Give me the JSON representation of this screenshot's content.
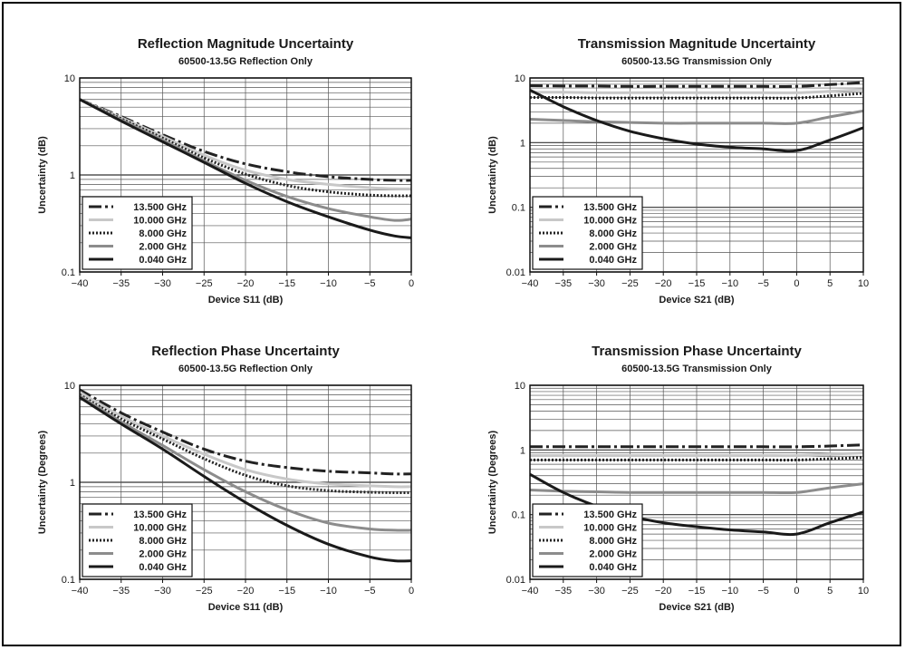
{
  "series_styles": [
    {
      "name": "13.500 GHz",
      "color": "#222222",
      "dash": "14,4,3,4",
      "width": 3
    },
    {
      "name": "10.000 GHz",
      "color": "#c8c8c8",
      "dash": "",
      "width": 3
    },
    {
      "name": "8.000 GHz",
      "color": "#222222",
      "dash": "2,2",
      "width": 3
    },
    {
      "name": "2.000 GHz",
      "color": "#8c8c8c",
      "dash": "",
      "width": 3
    },
    {
      "name": "0.040 GHz",
      "color": "#1a1a1a",
      "dash": "",
      "width": 3
    }
  ],
  "chart_data": [
    {
      "type": "line",
      "title": "Reflection Magnitude Uncertainty",
      "subtitle": "60500-13.5G Reflection Only",
      "xlabel": "Device S11 (dB)",
      "ylabel": "Uncertainty (dB)",
      "xlim": [
        -40,
        0
      ],
      "ylim": [
        0.1,
        10
      ],
      "yscale": "log",
      "xticks": [
        -40,
        -35,
        -30,
        -25,
        -20,
        -15,
        -10,
        -5,
        0
      ],
      "yticks": [
        0.1,
        1,
        10
      ],
      "ytick_labels": [
        "0.1",
        "1",
        "10"
      ],
      "grid": true,
      "legend": "bottom-left",
      "x": [
        -40,
        -35,
        -30,
        -25,
        -20,
        -15,
        -10,
        -5,
        -2,
        0
      ],
      "series": [
        {
          "name": "13.500 GHz",
          "values": [
            6.0,
            4.0,
            2.6,
            1.75,
            1.3,
            1.08,
            0.96,
            0.9,
            0.88,
            0.88
          ]
        },
        {
          "name": "10.000 GHz",
          "values": [
            6.0,
            3.9,
            2.5,
            1.6,
            1.12,
            0.9,
            0.8,
            0.74,
            0.72,
            0.72
          ]
        },
        {
          "name": "8.000 GHz",
          "values": [
            6.0,
            3.8,
            2.4,
            1.5,
            1.02,
            0.78,
            0.67,
            0.62,
            0.61,
            0.61
          ]
        },
        {
          "name": "2.000 GHz",
          "values": [
            6.0,
            3.7,
            2.3,
            1.4,
            0.88,
            0.6,
            0.45,
            0.37,
            0.34,
            0.35
          ]
        },
        {
          "name": "0.040 GHz",
          "values": [
            6.0,
            3.6,
            2.2,
            1.35,
            0.82,
            0.53,
            0.37,
            0.27,
            0.235,
            0.225
          ]
        }
      ]
    },
    {
      "type": "line",
      "title": "Transmission Magnitude Uncertainty",
      "subtitle": "60500-13.5G Transmission Only",
      "xlabel": "Device S21 (dB)",
      "ylabel": "Uncertainty (dB)",
      "xlim": [
        -40,
        10
      ],
      "ylim": [
        0.01,
        10
      ],
      "yscale": "log",
      "xticks": [
        -40,
        -35,
        -30,
        -25,
        -20,
        -15,
        -10,
        -5,
        0,
        5,
        10
      ],
      "yticks": [
        0.01,
        0.1,
        1,
        10
      ],
      "ytick_labels": [
        "0.01",
        "0.1",
        "1",
        "10"
      ],
      "grid": true,
      "legend": "bottom-left",
      "x": [
        -40,
        -35,
        -30,
        -25,
        -20,
        -15,
        -10,
        -5,
        0,
        5,
        10
      ],
      "series": [
        {
          "name": "13.500 GHz",
          "values": [
            7.6,
            7.5,
            7.5,
            7.4,
            7.4,
            7.4,
            7.4,
            7.4,
            7.4,
            7.9,
            8.5
          ]
        },
        {
          "name": "10.000 GHz",
          "values": [
            6.0,
            6.0,
            5.9,
            5.9,
            5.9,
            5.9,
            5.9,
            5.9,
            5.9,
            6.2,
            6.6
          ]
        },
        {
          "name": "8.000 GHz",
          "values": [
            5.0,
            5.0,
            4.9,
            4.9,
            4.9,
            4.9,
            4.9,
            4.9,
            4.9,
            5.3,
            5.8
          ]
        },
        {
          "name": "2.000 GHz",
          "values": [
            2.3,
            2.2,
            2.1,
            2.05,
            2.0,
            2.0,
            2.0,
            2.0,
            2.0,
            2.5,
            3.1
          ]
        },
        {
          "name": "0.040 GHz",
          "values": [
            6.5,
            3.6,
            2.2,
            1.5,
            1.15,
            0.95,
            0.85,
            0.8,
            0.75,
            1.1,
            1.7
          ]
        }
      ]
    },
    {
      "type": "line",
      "title": "Reflection Phase Uncertainty",
      "subtitle": "60500-13.5G  Reflection Only",
      "xlabel": "Device S11 (dB)",
      "ylabel": "Uncertainty (Degrees)",
      "xlim": [
        -40,
        0
      ],
      "ylim": [
        0.1,
        10
      ],
      "yscale": "log",
      "xticks": [
        -40,
        -35,
        -30,
        -25,
        -20,
        -15,
        -10,
        -5,
        0
      ],
      "yticks": [
        0.1,
        1,
        10
      ],
      "ytick_labels": [
        "0.1",
        "1",
        "10"
      ],
      "grid": true,
      "legend": "bottom-left",
      "x": [
        -40,
        -35,
        -30,
        -25,
        -20,
        -15,
        -10,
        -5,
        -2,
        0
      ],
      "series": [
        {
          "name": "13.500 GHz",
          "values": [
            9.0,
            5.2,
            3.3,
            2.2,
            1.65,
            1.42,
            1.3,
            1.25,
            1.22,
            1.22
          ]
        },
        {
          "name": "10.000 GHz",
          "values": [
            8.5,
            4.8,
            3.0,
            1.95,
            1.35,
            1.08,
            0.96,
            0.92,
            0.9,
            0.9
          ]
        },
        {
          "name": "8.000 GHz",
          "values": [
            8.0,
            4.5,
            2.8,
            1.75,
            1.18,
            0.92,
            0.82,
            0.79,
            0.78,
            0.78
          ]
        },
        {
          "name": "2.000 GHz",
          "values": [
            7.8,
            4.2,
            2.4,
            1.35,
            0.8,
            0.52,
            0.38,
            0.33,
            0.32,
            0.32
          ]
        },
        {
          "name": "0.040 GHz",
          "values": [
            7.5,
            4.0,
            2.2,
            1.15,
            0.62,
            0.36,
            0.23,
            0.17,
            0.155,
            0.155
          ]
        }
      ]
    },
    {
      "type": "line",
      "title": "Transmission Phase Uncertainty",
      "subtitle": "60500-13.5G Transmission Only",
      "xlabel": "Device S21 (dB)",
      "ylabel": "Uncertainty (Degrees)",
      "xlim": [
        -40,
        10
      ],
      "ylim": [
        0.01,
        10
      ],
      "yscale": "log",
      "xticks": [
        -40,
        -35,
        -30,
        -25,
        -20,
        -15,
        -10,
        -5,
        0,
        5,
        10
      ],
      "yticks": [
        0.01,
        0.1,
        1,
        10
      ],
      "ytick_labels": [
        "0.01",
        "0.1",
        "1",
        "10"
      ],
      "grid": true,
      "legend": "bottom-left",
      "x": [
        -40,
        -35,
        -30,
        -25,
        -20,
        -15,
        -10,
        -5,
        0,
        5,
        10
      ],
      "series": [
        {
          "name": "13.500 GHz",
          "values": [
            1.12,
            1.12,
            1.12,
            1.12,
            1.12,
            1.12,
            1.12,
            1.12,
            1.12,
            1.15,
            1.2
          ]
        },
        {
          "name": "10.000 GHz",
          "values": [
            0.82,
            0.82,
            0.82,
            0.82,
            0.82,
            0.82,
            0.82,
            0.82,
            0.82,
            0.86,
            0.9
          ]
        },
        {
          "name": "8.000 GHz",
          "values": [
            0.7,
            0.7,
            0.7,
            0.7,
            0.7,
            0.7,
            0.7,
            0.7,
            0.7,
            0.73,
            0.76
          ]
        },
        {
          "name": "2.000 GHz",
          "values": [
            0.24,
            0.23,
            0.225,
            0.22,
            0.22,
            0.22,
            0.22,
            0.22,
            0.22,
            0.26,
            0.3
          ]
        },
        {
          "name": "0.040 GHz",
          "values": [
            0.42,
            0.22,
            0.135,
            0.095,
            0.075,
            0.065,
            0.058,
            0.054,
            0.05,
            0.075,
            0.11
          ]
        }
      ]
    }
  ]
}
